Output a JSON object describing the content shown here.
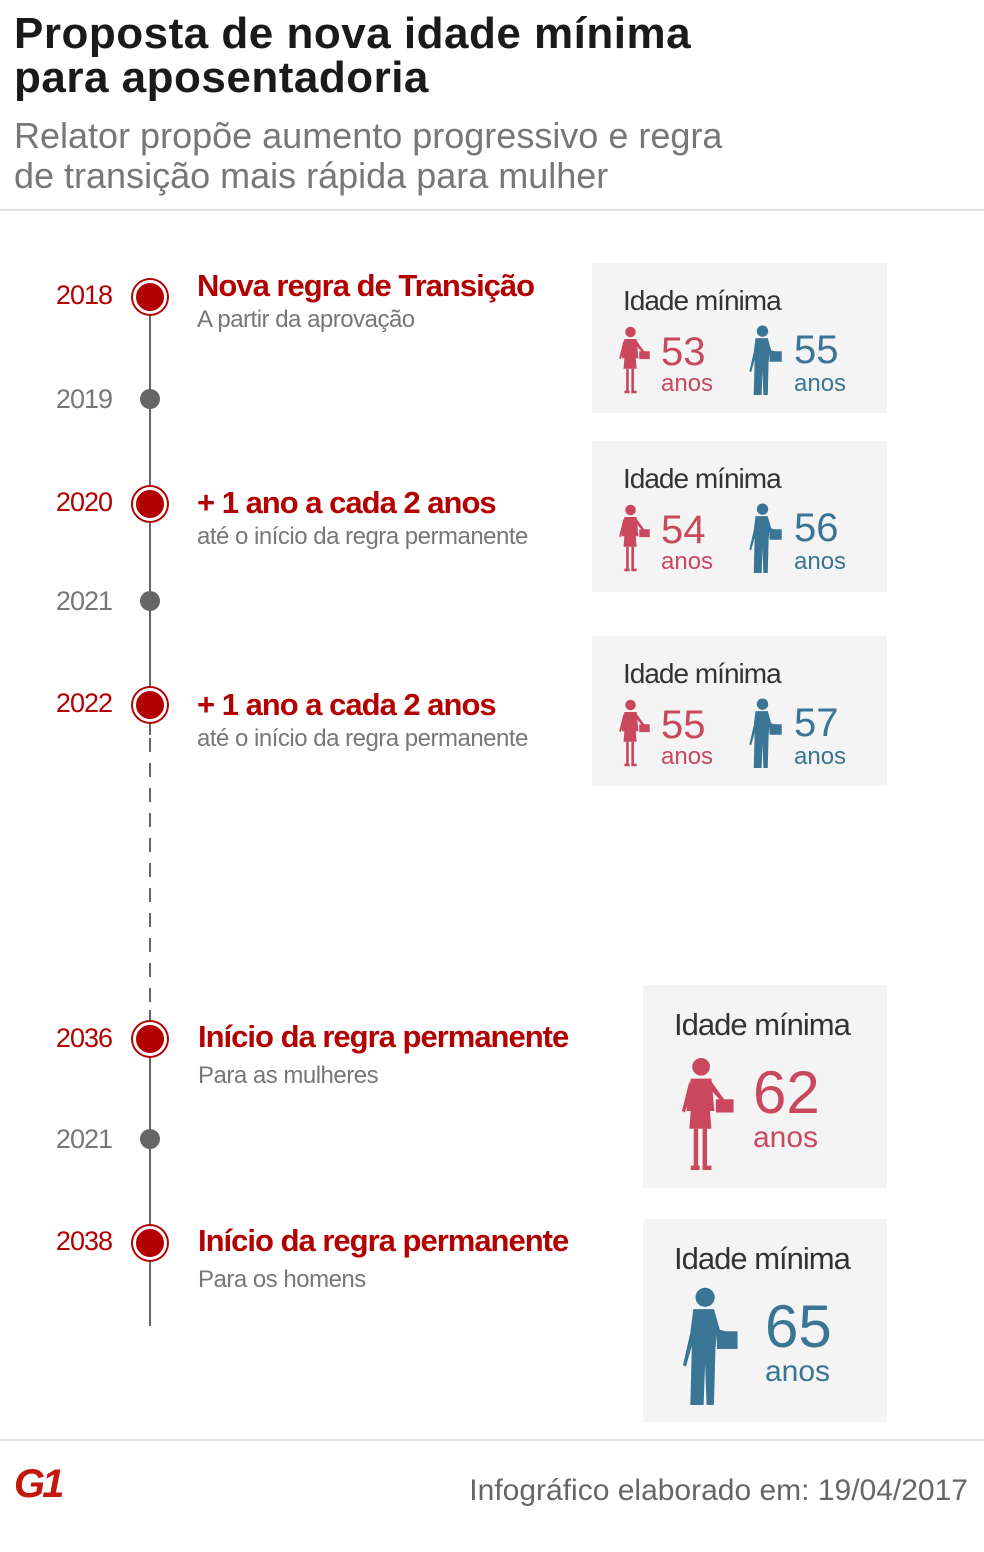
{
  "header": {
    "title_line1": "Proposta de nova idade mínima",
    "title_line2": "para aposentadoria",
    "subtitle_line1": "Relator propõe aumento progressivo e regra",
    "subtitle_line2": "de transição mais rápida para mulher"
  },
  "timeline": [
    {
      "year": "2018",
      "type": "major",
      "title": "Nova regra de Transição",
      "subtitle": "A partir da aprovação",
      "card": {
        "label": "Idade mínima",
        "women": "53",
        "men": "55",
        "unit": "anos"
      }
    },
    {
      "year": "2019",
      "type": "minor"
    },
    {
      "year": "2020",
      "type": "major",
      "title": "+ 1 ano a cada 2 anos",
      "subtitle": "até o início da regra permanente",
      "card": {
        "label": "Idade mínima",
        "women": "54",
        "men": "56",
        "unit": "anos"
      }
    },
    {
      "year": "2021",
      "type": "minor"
    },
    {
      "year": "2022",
      "type": "major",
      "title": "+ 1 ano a cada 2 anos",
      "subtitle": "até o início da regra permanente",
      "card": {
        "label": "Idade mínima",
        "women": "55",
        "men": "57",
        "unit": "anos"
      }
    },
    {
      "year": "2036",
      "type": "major",
      "title": "Início da regra permanente",
      "subtitle": "Para as mulheres",
      "card": {
        "label": "Idade mínima",
        "women": "62",
        "unit": "anos"
      }
    },
    {
      "year": "2021",
      "type": "minor"
    },
    {
      "year": "2038",
      "type": "major",
      "title": "Início da regra permanente",
      "subtitle": "Para os homens",
      "card": {
        "label": "Idade mínima",
        "men": "65",
        "unit": "anos"
      }
    }
  ],
  "colors": {
    "accent": "#b30000",
    "women": "#c9485e",
    "men": "#3a7595",
    "card_bg": "#f4f4f4"
  },
  "footer": {
    "logo": "G1",
    "credit": "Infográfico elaborado em: 19/04/2017"
  }
}
